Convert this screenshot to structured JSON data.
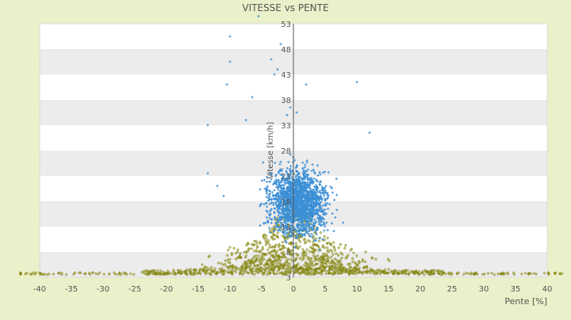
{
  "chart_data": {
    "type": "scatter",
    "title": "VITESSE vs PENTE",
    "xlabel": "Pente [%]",
    "ylabel": "Vitesse [km/h]",
    "xlim": [
      -40,
      40
    ],
    "ylim": [
      3,
      53
    ],
    "x_ticks": [
      -40,
      -35,
      -30,
      -25,
      -20,
      -15,
      -10,
      -5,
      0,
      5,
      10,
      15,
      20,
      25,
      30,
      35,
      40
    ],
    "y_ticks": [
      3,
      8,
      13,
      18,
      23,
      28,
      33,
      38,
      43,
      48,
      53
    ],
    "grid": "horizontal alternating bands",
    "legend": "none",
    "series": [
      {
        "color": "#3b8fd6",
        "marker": "plus",
        "points": [
          [
            -5.5,
            54.5
          ],
          [
            -10,
            50.5
          ],
          [
            -2,
            49
          ],
          [
            -3.5,
            46
          ],
          [
            -10,
            45.5
          ],
          [
            -2.5,
            44
          ],
          [
            -3,
            43
          ],
          [
            -10.5,
            41
          ],
          [
            2,
            41
          ],
          [
            10,
            41.5
          ],
          [
            -6.5,
            38.5
          ],
          [
            -0.5,
            36.5
          ],
          [
            -13.5,
            33
          ],
          [
            -7.5,
            34
          ],
          [
            12,
            31.5
          ],
          [
            -1,
            35
          ],
          [
            0.5,
            35.5
          ],
          [
            -13.5,
            23.5
          ],
          [
            -12,
            21
          ],
          [
            -11,
            19
          ]
        ],
        "cloud": {
          "description_count": 1800,
          "x_center": 0.8,
          "x_spread": 3.5,
          "y_center": 18,
          "y_spread": 4.5,
          "x_range": [
            -9,
            12
          ],
          "y_range": [
            8,
            33
          ]
        }
      },
      {
        "color": "#8a8a1a",
        "marker": "diamond",
        "points": [],
        "cloud": {
          "description_count": 1400,
          "baseline_y": 3.5,
          "x_range": [
            -44,
            44
          ],
          "peak_x": 0,
          "peak_y": 26
        }
      }
    ]
  }
}
